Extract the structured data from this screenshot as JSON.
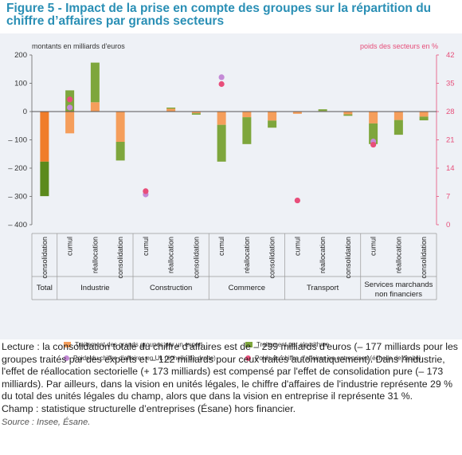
{
  "figure": {
    "title": "Figure 5 - Impact de la prise en compte des groupes sur la répartition du chiffre d’affaires par grands secteurs"
  },
  "chart_data": {
    "type": "bar",
    "stacked": true,
    "left_axis": {
      "label": "montants en milliards d'euros",
      "range": [
        -400,
        200
      ],
      "ticks": [
        "200",
        "100",
        "0",
        "– 100",
        "– 200",
        "– 300",
        "– 400"
      ]
    },
    "right_axis": {
      "label": "poids des secteurs en %",
      "range": [
        0,
        42
      ],
      "ticks": [
        "42",
        "35",
        "28",
        "21",
        "14",
        "7",
        "0"
      ]
    },
    "groups": [
      {
        "name": "Total",
        "categories": [
          "consolidation"
        ]
      },
      {
        "name": "Industrie",
        "categories": [
          "cumul",
          "réallocation",
          "consolidation"
        ]
      },
      {
        "name": "Construction",
        "categories": [
          "cumul",
          "réallocation",
          "consolidation"
        ]
      },
      {
        "name": "Commerce",
        "categories": [
          "cumul",
          "réallocation",
          "consolidation"
        ]
      },
      {
        "name": "Transport",
        "categories": [
          "cumul",
          "réallocation",
          "consolidation"
        ]
      },
      {
        "name": "Services marchands non financiers",
        "categories": [
          "cumul",
          "réallocation",
          "consolidation"
        ]
      }
    ],
    "bars": [
      {
        "expert": -177,
        "algo": -122
      },
      {
        "expert": -77,
        "algo": 75
      },
      {
        "expert": 33,
        "algo": 140
      },
      {
        "expert": -107,
        "algo": -66
      },
      {
        "expert": 0,
        "algo": 0
      },
      {
        "expert": 10,
        "algo": 4
      },
      {
        "expert": -6,
        "algo": -5
      },
      {
        "expert": -47,
        "algo": -130
      },
      {
        "expert": -20,
        "algo": -95
      },
      {
        "expert": -32,
        "algo": -25
      },
      {
        "expert": -8,
        "algo": 0
      },
      {
        "expert": 2,
        "algo": 6
      },
      {
        "expert": -10,
        "algo": -5
      },
      {
        "expert": -42,
        "algo": -73
      },
      {
        "expert": -30,
        "algo": -52
      },
      {
        "expert": -18,
        "algo": -13
      }
    ],
    "points": [
      {
        "bar": 1,
        "ul": 29,
        "ent": 31
      },
      {
        "bar": 4,
        "ul": 7.5,
        "ent": 8.3
      },
      {
        "bar": 7,
        "ul": 36.5,
        "ent": 34.8
      },
      {
        "bar": 10,
        "ent": 6
      },
      {
        "bar": 13,
        "ul": 20.6,
        "ent": 19.8
      }
    ],
    "series": [
      {
        "name": "Traitement des grands groupes par un expert",
        "color": "#f59e5b"
      },
      {
        "name": "Traitement par algorithme",
        "color": "#7ea63c"
      },
      {
        "name": "Poids du chiffre d'affaires en UL (échelle de droite)",
        "color": "#c48ad6"
      },
      {
        "name": "Poids du chiffre d'affaires en entreprises (échelle de droite)",
        "color": "#e84e7a"
      }
    ],
    "colors": {
      "expert_strong": "#f07d2a",
      "algo_strong": "#5b8a1c",
      "right_axis": "#e64f7a"
    }
  },
  "notes": {
    "lecture": "Lecture : la consolidation totale du chiffre d'affaires est de – 299 milliards d'euros (– 177 milliards pour les groupes traités par des experts et – 122 milliards pour ceux traités automatiquement). Dans l'industrie, l'effet de réallocation sectorielle (+ 173 milliards) est compensé par l'effet de consolidation pure (– 173 milliards). Par ailleurs, dans la vision en unités légales, le chiffre d'affaires de l'industrie représente 29 % du total des unités légales du champ, alors que dans la vision en entreprise il représente 31 %.",
    "champ": "Champ : statistique structurelle d’entreprises (Ésane) hors financier.",
    "source": "Source : Insee, Ésane."
  }
}
